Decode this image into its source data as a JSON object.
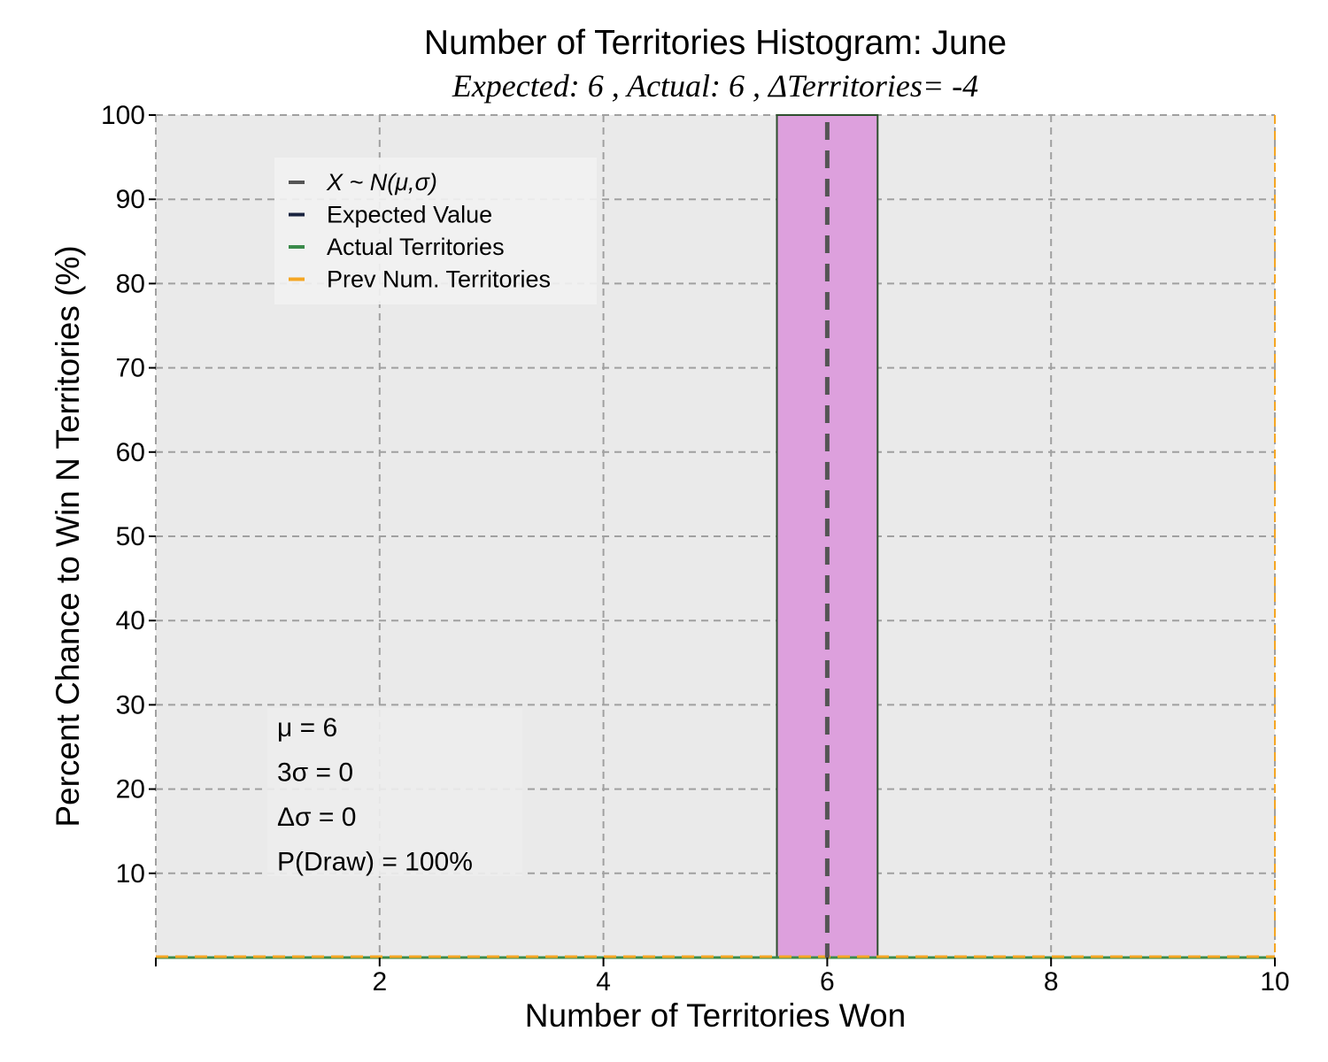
{
  "chart_data": {
    "type": "bar",
    "title": "Number of Territories Histogram: June",
    "subtitle": "Expected: 6 , Actual: 6 , ΔTerritories= -4",
    "xlabel": "Number of Territories Won",
    "ylabel": "Percent Chance to Win N Territories (%)",
    "xlim": [
      0,
      10
    ],
    "ylim": [
      0,
      100
    ],
    "xticks": [
      2,
      4,
      6,
      8,
      10
    ],
    "yticks": [
      10,
      20,
      30,
      40,
      50,
      60,
      70,
      80,
      90,
      100
    ],
    "grid": true,
    "bars": [
      {
        "x": 6,
        "width": 0.9,
        "value": 100
      }
    ],
    "lines": {
      "normal": {
        "x": 6
      },
      "expected": {
        "x": 6
      },
      "actual": {
        "x": 6
      },
      "prev": {
        "x": 10
      }
    },
    "legend": {
      "placement": "upper-left",
      "entries": [
        "X ~ N(μ,σ)",
        "Expected Value",
        "Actual Territories",
        "Prev Num. Territories"
      ]
    },
    "stats": [
      "μ = 6",
      "3σ = 0",
      "Δσ = 0",
      "P(Draw) = 100%"
    ],
    "colors": {
      "bar_fill": "#dda0dd",
      "bar_edge": "#2f4f2f",
      "normal": "#555555",
      "expected": "#1a2440",
      "actual": "#3a8a4a",
      "prev": "#f5a623",
      "plot_bg": "#eaeaea",
      "grid": "#a0a0a0"
    }
  }
}
